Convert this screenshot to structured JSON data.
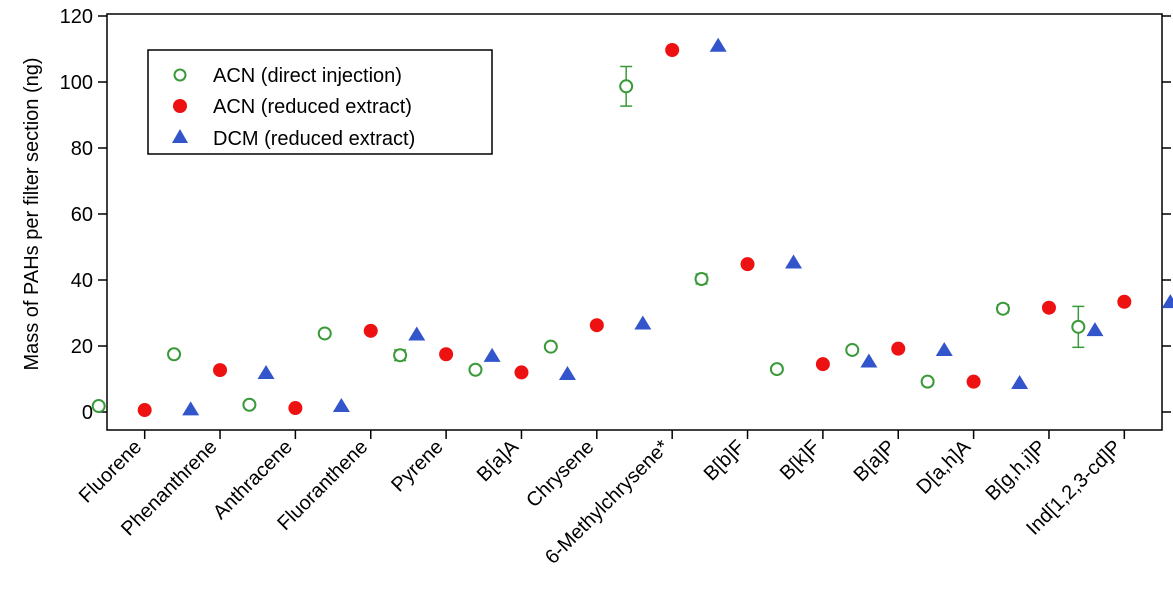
{
  "chart_data": {
    "type": "scatter",
    "ylabel": "Mass of PAHs per filter section (ng)",
    "xlabel": "",
    "ylim": [
      -5,
      120
    ],
    "yticks": [
      0,
      20,
      40,
      60,
      80,
      100,
      120
    ],
    "categories": [
      "Fluorene",
      "Phenanthrene",
      "Anthracene",
      "Fluoranthene",
      "Pyrene",
      "B[a]A",
      "Chrysene",
      "6-Methylchrysene*",
      "B[b]F",
      "B[k]F",
      "B[a]P",
      "D[a,h]A",
      "B[g,h,i]P",
      "Ind[1,2,3-cd]P"
    ],
    "series": [
      {
        "name": "ACN (direct injection)",
        "marker": "open-circle",
        "color": "#3a9a3a",
        "values": [
          1.8,
          17.5,
          2.2,
          23.8,
          17.2,
          12.8,
          19.8,
          98.7,
          40.3,
          13.0,
          18.8,
          9.2,
          31.3,
          25.8
        ],
        "errors": [
          0.8,
          1.0,
          0.5,
          0.8,
          1.6,
          0.6,
          0.8,
          6.0,
          1.5,
          0.8,
          0.8,
          1.0,
          1.2,
          6.2
        ]
      },
      {
        "name": "ACN (reduced extract)",
        "marker": "filled-circle",
        "color": "#ee1111",
        "values": [
          0.6,
          12.7,
          1.2,
          24.6,
          17.5,
          12.0,
          26.3,
          109.7,
          44.8,
          14.5,
          19.2,
          9.2,
          31.6,
          33.4
        ],
        "errors": [
          0,
          0,
          0,
          0,
          0,
          0,
          0,
          0,
          0,
          0,
          0,
          0,
          0,
          1.0
        ]
      },
      {
        "name": "DCM (reduced extract)",
        "marker": "filled-triangle",
        "color": "#3355cc",
        "values": [
          0.8,
          11.8,
          1.8,
          23.5,
          17.0,
          11.5,
          26.8,
          111.0,
          45.3,
          15.3,
          18.8,
          8.8,
          24.8,
          33.3
        ],
        "errors": [
          0,
          0,
          0,
          0,
          0,
          0,
          0,
          0,
          0,
          0,
          0,
          0,
          0,
          0
        ]
      }
    ],
    "grid": false,
    "legend_position": "top-left"
  }
}
